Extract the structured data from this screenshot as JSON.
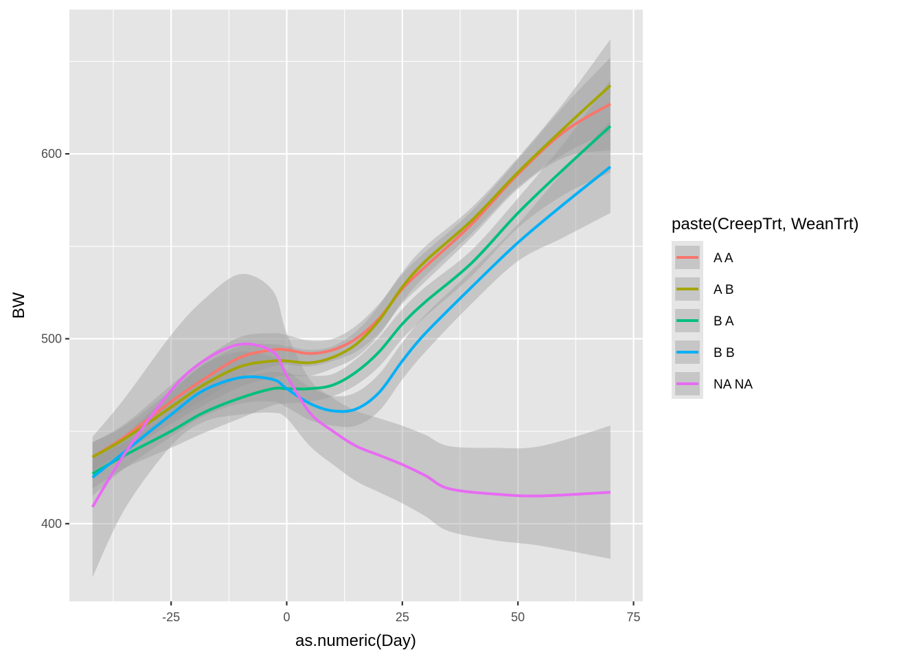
{
  "chart_data": {
    "type": "line",
    "xlabel": "as.numeric(Day)",
    "ylabel": "BW",
    "xlim": [
      -47,
      77
    ],
    "ylim": [
      358,
      678
    ],
    "x_ticks": [
      -25,
      0,
      25,
      50,
      75
    ],
    "y_ticks": [
      400,
      500,
      600
    ],
    "x_tick_labels": [
      "-25",
      "0",
      "25",
      "50",
      "75"
    ],
    "y_tick_labels": [
      "400",
      "500",
      "600"
    ],
    "grid": true,
    "smooth_confidence_band": true,
    "panel_background": "#E5E5E5",
    "band_color": "#999999",
    "legend": {
      "title": "paste(CreepTrt, WeanTrt)",
      "position": "right"
    },
    "series": [
      {
        "name": "A A",
        "color": "#F8766D",
        "points": [
          [
            -42,
            436
          ],
          [
            -35,
            447
          ],
          [
            -25,
            466
          ],
          [
            -18,
            478
          ],
          [
            -10,
            490
          ],
          [
            -3,
            494
          ],
          [
            0,
            494
          ],
          [
            5,
            492
          ],
          [
            10,
            494
          ],
          [
            15,
            500
          ],
          [
            20,
            511
          ],
          [
            25,
            527
          ],
          [
            30,
            539
          ],
          [
            40,
            562
          ],
          [
            50,
            589
          ],
          [
            60,
            612
          ],
          [
            70,
            627
          ]
        ],
        "band": [
          [
            8,
            8
          ],
          [
            7,
            7
          ],
          [
            9,
            9
          ],
          [
            11,
            11
          ],
          [
            11,
            11
          ],
          [
            9,
            9
          ],
          [
            8,
            8
          ],
          [
            7,
            7
          ],
          [
            6,
            6
          ],
          [
            7,
            7
          ],
          [
            8,
            8
          ],
          [
            8,
            8
          ],
          [
            8,
            8
          ],
          [
            7,
            7
          ],
          [
            8,
            8
          ],
          [
            14,
            14
          ],
          [
            25,
            25
          ]
        ]
      },
      {
        "name": "A B",
        "color": "#A3A500",
        "points": [
          [
            -42,
            436
          ],
          [
            -35,
            446
          ],
          [
            -25,
            463
          ],
          [
            -18,
            475
          ],
          [
            -10,
            485
          ],
          [
            -3,
            488
          ],
          [
            0,
            488
          ],
          [
            5,
            487
          ],
          [
            10,
            490
          ],
          [
            15,
            497
          ],
          [
            20,
            510
          ],
          [
            25,
            528
          ],
          [
            30,
            542
          ],
          [
            40,
            564
          ],
          [
            50,
            590
          ],
          [
            60,
            614
          ],
          [
            70,
            637
          ]
        ],
        "band": [
          [
            8,
            8
          ],
          [
            7,
            7
          ],
          [
            9,
            9
          ],
          [
            11,
            11
          ],
          [
            11,
            11
          ],
          [
            9,
            9
          ],
          [
            8,
            8
          ],
          [
            7,
            7
          ],
          [
            6,
            6
          ],
          [
            7,
            7
          ],
          [
            8,
            8
          ],
          [
            8,
            8
          ],
          [
            8,
            8
          ],
          [
            7,
            7
          ],
          [
            8,
            8
          ],
          [
            14,
            14
          ],
          [
            25,
            25
          ]
        ]
      },
      {
        "name": "B A",
        "color": "#00BF7D",
        "points": [
          [
            -42,
            427
          ],
          [
            -35,
            437
          ],
          [
            -25,
            450
          ],
          [
            -18,
            460
          ],
          [
            -10,
            468
          ],
          [
            -3,
            473
          ],
          [
            0,
            473
          ],
          [
            5,
            473
          ],
          [
            10,
            475
          ],
          [
            15,
            482
          ],
          [
            20,
            493
          ],
          [
            25,
            508
          ],
          [
            30,
            520
          ],
          [
            40,
            541
          ],
          [
            50,
            568
          ],
          [
            60,
            592
          ],
          [
            70,
            615
          ]
        ],
        "band": [
          [
            8,
            8
          ],
          [
            7,
            7
          ],
          [
            9,
            9
          ],
          [
            11,
            11
          ],
          [
            11,
            11
          ],
          [
            9,
            9
          ],
          [
            8,
            8
          ],
          [
            7,
            7
          ],
          [
            6,
            6
          ],
          [
            7,
            7
          ],
          [
            8,
            8
          ],
          [
            8,
            8
          ],
          [
            8,
            8
          ],
          [
            7,
            7
          ],
          [
            8,
            8
          ],
          [
            14,
            14
          ],
          [
            25,
            25
          ]
        ]
      },
      {
        "name": "B B",
        "color": "#00B0F6",
        "points": [
          [
            -42,
            425
          ],
          [
            -35,
            439
          ],
          [
            -25,
            459
          ],
          [
            -18,
            472
          ],
          [
            -10,
            479
          ],
          [
            -3,
            478
          ],
          [
            0,
            473
          ],
          [
            5,
            465
          ],
          [
            10,
            461
          ],
          [
            15,
            462
          ],
          [
            20,
            471
          ],
          [
            25,
            488
          ],
          [
            30,
            503
          ],
          [
            40,
            528
          ],
          [
            50,
            552
          ],
          [
            60,
            573
          ],
          [
            70,
            593
          ]
        ],
        "band": [
          [
            10,
            10
          ],
          [
            9,
            9
          ],
          [
            12,
            12
          ],
          [
            14,
            14
          ],
          [
            14,
            14
          ],
          [
            12,
            12
          ],
          [
            10,
            10
          ],
          [
            9,
            9
          ],
          [
            8,
            8
          ],
          [
            9,
            9
          ],
          [
            10,
            10
          ],
          [
            10,
            10
          ],
          [
            10,
            10
          ],
          [
            9,
            9
          ],
          [
            10,
            10
          ],
          [
            18,
            18
          ],
          [
            25,
            25
          ]
        ]
      },
      {
        "name": "NA NA",
        "color": "#E76BF3",
        "points": [
          [
            -42,
            409
          ],
          [
            -35,
            438
          ],
          [
            -25,
            472
          ],
          [
            -18,
            488
          ],
          [
            -10,
            497
          ],
          [
            -3,
            493
          ],
          [
            0,
            480
          ],
          [
            5,
            460
          ],
          [
            10,
            450
          ],
          [
            15,
            442
          ],
          [
            20,
            437
          ],
          [
            25,
            432
          ],
          [
            30,
            426
          ],
          [
            35,
            419
          ],
          [
            45,
            416
          ],
          [
            55,
            415
          ],
          [
            70,
            417
          ]
        ],
        "band": [
          [
            38,
            38
          ],
          [
            30,
            30
          ],
          [
            30,
            30
          ],
          [
            33,
            33
          ],
          [
            38,
            38
          ],
          [
            33,
            33
          ],
          [
            23,
            23
          ],
          [
            18,
            18
          ],
          [
            18,
            18
          ],
          [
            19,
            19
          ],
          [
            20,
            20
          ],
          [
            21,
            21
          ],
          [
            22,
            22
          ],
          [
            23,
            23
          ],
          [
            25,
            25
          ],
          [
            27,
            27
          ],
          [
            36,
            36
          ]
        ]
      }
    ]
  }
}
